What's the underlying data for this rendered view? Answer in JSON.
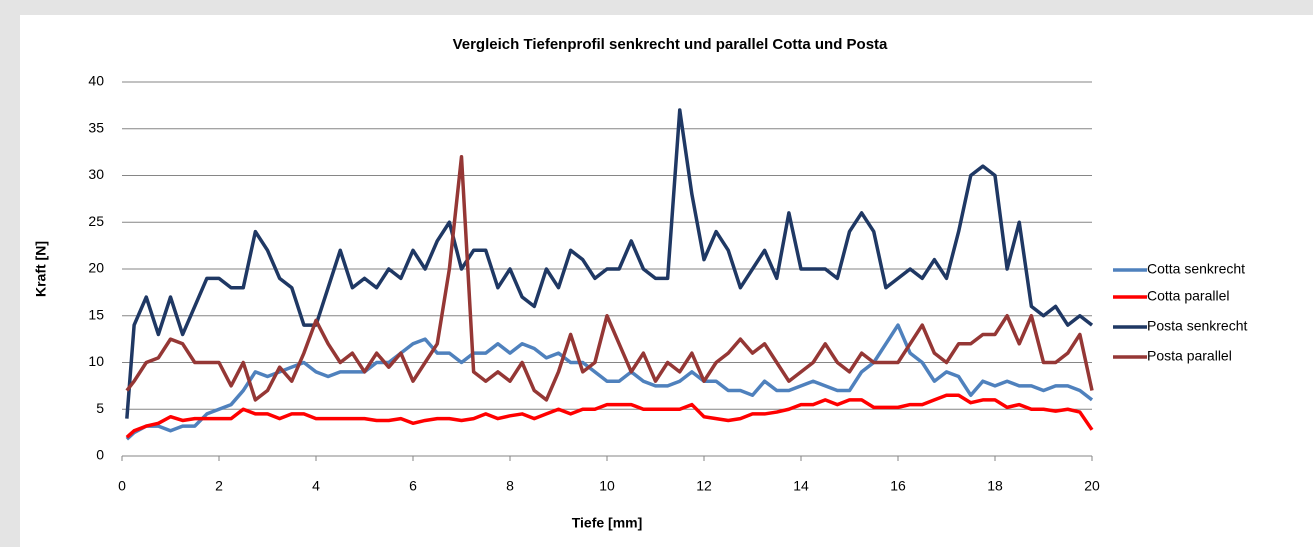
{
  "chart_data": {
    "type": "line",
    "title": "Vergleich Tiefenprofil senkrecht und parallel Cotta und Posta",
    "xlabel": "Tiefe [mm]",
    "ylabel": "Kraft [N]",
    "x": [
      0.1,
      0.25,
      0.5,
      0.75,
      1,
      1.25,
      1.5,
      1.75,
      2,
      2.25,
      2.5,
      2.75,
      3,
      3.25,
      3.5,
      3.75,
      4,
      4.25,
      4.5,
      4.75,
      5,
      5.25,
      5.5,
      5.75,
      6,
      6.25,
      6.5,
      6.75,
      7,
      7.25,
      7.5,
      7.75,
      8,
      8.25,
      8.5,
      8.75,
      9,
      9.25,
      9.5,
      9.75,
      10,
      10.25,
      10.5,
      10.75,
      11,
      11.25,
      11.5,
      11.75,
      12,
      12.25,
      12.5,
      12.75,
      13,
      13.25,
      13.5,
      13.75,
      14,
      14.25,
      14.5,
      14.75,
      15,
      15.25,
      15.5,
      15.75,
      16,
      16.25,
      16.5,
      16.75,
      17,
      17.25,
      17.5,
      17.75,
      18,
      18.25,
      18.5,
      18.75,
      19,
      19.25,
      19.5,
      19.75,
      20
    ],
    "series": [
      {
        "name": "Cotta senkrecht",
        "color": "#4f81bd",
        "values": [
          1.8,
          2.5,
          3.2,
          3.2,
          2.7,
          3.2,
          3.2,
          4.5,
          5,
          5.5,
          7,
          9,
          8.5,
          9,
          9.5,
          10,
          9,
          8.5,
          9,
          9,
          9,
          10,
          10,
          11,
          12,
          12.5,
          11,
          11,
          10,
          11,
          11,
          12,
          11,
          12,
          11.5,
          10.5,
          11,
          10,
          10,
          9,
          8,
          8,
          9,
          8,
          7.5,
          7.5,
          8,
          9,
          8,
          8,
          7,
          7,
          6.5,
          8,
          7,
          7,
          7.5,
          8,
          7.5,
          7,
          7,
          9,
          10,
          12,
          14,
          11,
          10,
          8,
          9,
          8.5,
          6.5,
          8,
          7.5,
          8,
          7.5,
          7.5,
          7,
          7.5,
          7.5,
          7,
          6
        ]
      },
      {
        "name": "Cotta parallel",
        "color": "#ff0000",
        "values": [
          2,
          2.7,
          3.2,
          3.5,
          4.2,
          3.8,
          4,
          4,
          4,
          4,
          5,
          4.5,
          4.5,
          4,
          4.5,
          4.5,
          4,
          4,
          4,
          4,
          4,
          3.8,
          3.8,
          4,
          3.5,
          3.8,
          4,
          4,
          3.8,
          4,
          4.5,
          4,
          4.3,
          4.5,
          4,
          4.5,
          5,
          4.5,
          5,
          5,
          5.5,
          5.5,
          5.5,
          5,
          5,
          5,
          5,
          5.5,
          4.2,
          4,
          3.8,
          4,
          4.5,
          4.5,
          4.7,
          5,
          5.5,
          5.5,
          6,
          5.5,
          6,
          6,
          5.2,
          5.2,
          5.2,
          5.5,
          5.5,
          6,
          6.5,
          6.5,
          5.7,
          6,
          6,
          5.2,
          5.5,
          5,
          5,
          4.8,
          5,
          4.7,
          2.8
        ]
      },
      {
        "name": "Posta senkrecht",
        "color": "#1f3864",
        "values": [
          4,
          14,
          17,
          13,
          17,
          13,
          16,
          19,
          19,
          18,
          18,
          24,
          22,
          19,
          18,
          14,
          14,
          18,
          22,
          18,
          19,
          18,
          20,
          19,
          22,
          20,
          23,
          25,
          20,
          22,
          22,
          18,
          20,
          17,
          16,
          20,
          18,
          22,
          21,
          19,
          20,
          20,
          23,
          20,
          19,
          19,
          37,
          28,
          21,
          24,
          22,
          18,
          20,
          22,
          19,
          26,
          20,
          20,
          20,
          19,
          24,
          26,
          24,
          18,
          19,
          20,
          19,
          21,
          19,
          24,
          30,
          31,
          30,
          20,
          25,
          16,
          15,
          16,
          14,
          15,
          14
        ]
      },
      {
        "name": "Posta parallel",
        "color": "#953735",
        "values": [
          7,
          8,
          10,
          10.5,
          12.5,
          12,
          10,
          10,
          10,
          7.5,
          10,
          6,
          7,
          9.5,
          8,
          11,
          14.5,
          12,
          10,
          11,
          9,
          11,
          9.5,
          11,
          8,
          10,
          12,
          20,
          32,
          9,
          8,
          9,
          8,
          10,
          7,
          6,
          9,
          13,
          9,
          10,
          15,
          12,
          9,
          11,
          8,
          10,
          9,
          11,
          8,
          10,
          11,
          12.5,
          11,
          12,
          10,
          8,
          9,
          10,
          12,
          10,
          9,
          11,
          10,
          10,
          10,
          12,
          14,
          11,
          10,
          12,
          12,
          13,
          13,
          15,
          12,
          15,
          10,
          10,
          11,
          13,
          7
        ]
      }
    ],
    "xlim": [
      0,
      20
    ],
    "xticks": [
      0,
      2,
      4,
      6,
      8,
      10,
      12,
      14,
      16,
      18,
      20
    ],
    "ylim": [
      0,
      40
    ],
    "yticks": [
      0,
      5,
      10,
      15,
      20,
      25,
      30,
      35,
      40
    ],
    "grid": true,
    "legend": "right"
  }
}
